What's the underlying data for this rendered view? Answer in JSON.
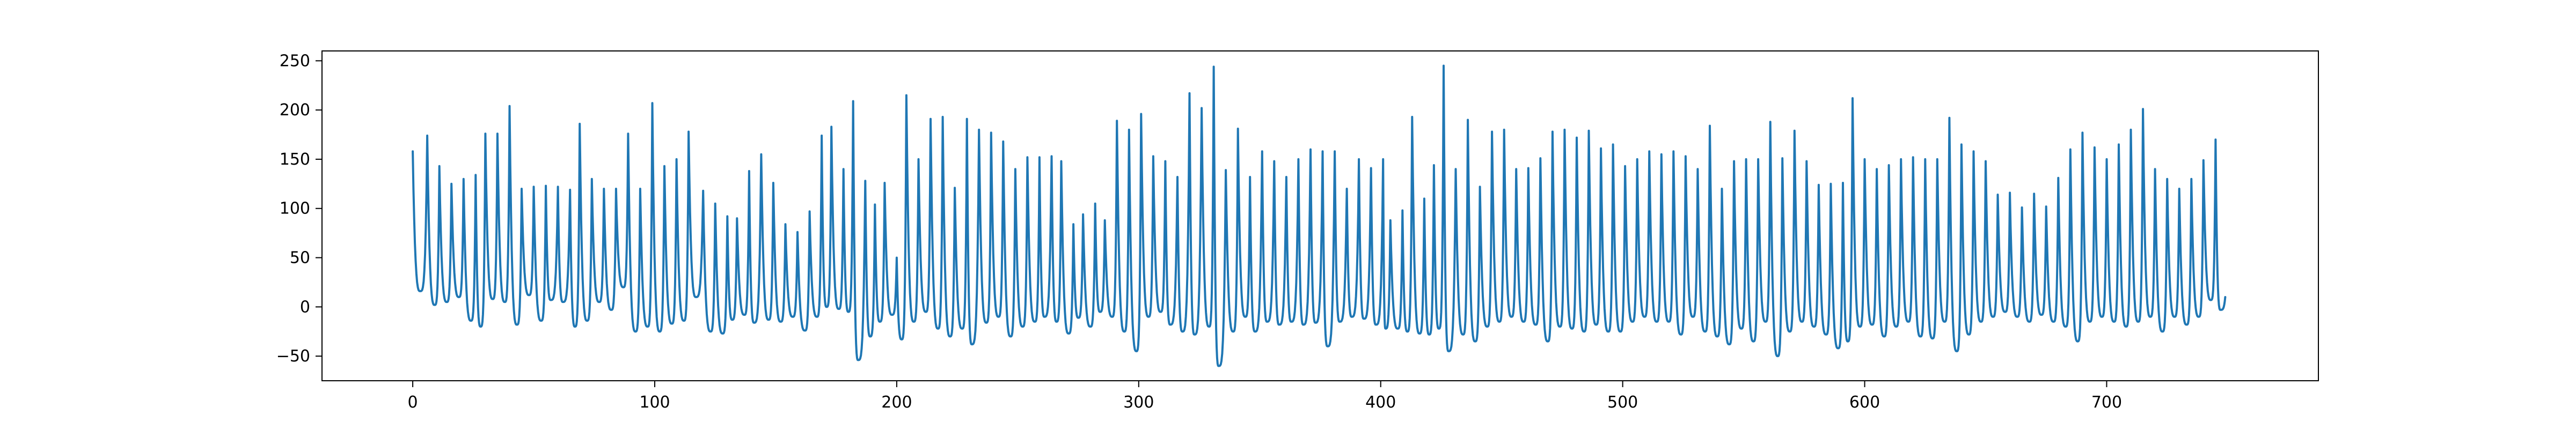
{
  "chart_data": {
    "type": "line",
    "title": "",
    "xlabel": "",
    "ylabel": "",
    "xlim": [
      -37.5,
      787.5
    ],
    "ylim": [
      -75,
      260
    ],
    "x_ticks": [
      0,
      100,
      200,
      300,
      400,
      500,
      600,
      700
    ],
    "y_ticks": [
      -50,
      0,
      50,
      100,
      150,
      200,
      250
    ],
    "grid": false,
    "legend": "none",
    "series": [
      {
        "color": "#1f77b4",
        "x_start": 0,
        "x_step": 1,
        "peaks": [
          [
            0,
            158
          ],
          [
            6,
            174
          ],
          [
            11,
            143
          ],
          [
            16,
            125
          ],
          [
            21,
            130
          ],
          [
            26,
            134
          ],
          [
            30,
            176
          ],
          [
            35,
            176
          ],
          [
            40,
            204
          ],
          [
            45,
            120
          ],
          [
            50,
            122
          ],
          [
            55,
            123
          ],
          [
            60,
            122
          ],
          [
            65,
            119
          ],
          [
            69,
            186
          ],
          [
            74,
            130
          ],
          [
            79,
            120
          ],
          [
            84,
            120
          ],
          [
            89,
            176
          ],
          [
            94,
            120
          ],
          [
            99,
            207
          ],
          [
            104,
            143
          ],
          [
            109,
            150
          ],
          [
            114,
            178
          ],
          [
            120,
            118
          ],
          [
            125,
            105
          ],
          [
            130,
            92
          ],
          [
            134,
            90
          ],
          [
            139,
            138
          ],
          [
            144,
            155
          ],
          [
            149,
            126
          ],
          [
            154,
            84
          ],
          [
            159,
            76
          ],
          [
            164,
            97
          ],
          [
            169,
            174
          ],
          [
            173,
            183
          ],
          [
            178,
            140
          ],
          [
            182,
            209
          ],
          [
            187,
            128
          ],
          [
            191,
            104
          ],
          [
            195,
            126
          ],
          [
            200,
            50
          ],
          [
            204,
            215
          ],
          [
            209,
            150
          ],
          [
            214,
            191
          ],
          [
            219,
            193
          ],
          [
            224,
            121
          ],
          [
            229,
            191
          ],
          [
            234,
            180
          ],
          [
            239,
            177
          ],
          [
            244,
            168
          ],
          [
            249,
            140
          ],
          [
            254,
            152
          ],
          [
            259,
            152
          ],
          [
            264,
            153
          ],
          [
            268,
            148
          ],
          [
            273,
            84
          ],
          [
            277,
            94
          ],
          [
            282,
            105
          ],
          [
            286,
            88
          ],
          [
            291,
            189
          ],
          [
            296,
            180
          ],
          [
            301,
            196
          ],
          [
            306,
            153
          ],
          [
            311,
            148
          ],
          [
            316,
            132
          ],
          [
            321,
            217
          ],
          [
            326,
            202
          ],
          [
            331,
            244
          ],
          [
            336,
            139
          ],
          [
            341,
            181
          ],
          [
            346,
            132
          ],
          [
            351,
            158
          ],
          [
            356,
            148
          ],
          [
            361,
            132
          ],
          [
            366,
            150
          ],
          [
            371,
            160
          ],
          [
            376,
            158
          ],
          [
            381,
            158
          ],
          [
            386,
            120
          ],
          [
            391,
            150
          ],
          [
            396,
            141
          ],
          [
            401,
            150
          ],
          [
            404,
            88
          ],
          [
            409,
            98
          ],
          [
            413,
            193
          ],
          [
            418,
            110
          ],
          [
            422,
            144
          ],
          [
            426,
            245
          ],
          [
            431,
            140
          ],
          [
            436,
            190
          ],
          [
            441,
            122
          ],
          [
            446,
            178
          ],
          [
            451,
            180
          ],
          [
            456,
            140
          ],
          [
            461,
            141
          ],
          [
            466,
            151
          ],
          [
            471,
            178
          ],
          [
            476,
            180
          ],
          [
            481,
            172
          ],
          [
            486,
            179
          ],
          [
            491,
            161
          ],
          [
            496,
            165
          ],
          [
            501,
            143
          ],
          [
            506,
            150
          ],
          [
            511,
            158
          ],
          [
            516,
            155
          ],
          [
            521,
            158
          ],
          [
            526,
            153
          ],
          [
            531,
            140
          ],
          [
            536,
            184
          ],
          [
            541,
            120
          ],
          [
            546,
            148
          ],
          [
            551,
            150
          ],
          [
            556,
            150
          ],
          [
            561,
            188
          ],
          [
            566,
            151
          ],
          [
            571,
            179
          ],
          [
            576,
            148
          ],
          [
            581,
            124
          ],
          [
            586,
            125
          ],
          [
            591,
            126
          ],
          [
            595,
            212
          ],
          [
            600,
            150
          ],
          [
            605,
            140
          ],
          [
            610,
            144
          ],
          [
            615,
            150
          ],
          [
            620,
            152
          ],
          [
            625,
            150
          ],
          [
            630,
            150
          ],
          [
            635,
            192
          ],
          [
            640,
            165
          ],
          [
            645,
            158
          ],
          [
            650,
            148
          ],
          [
            655,
            114
          ],
          [
            660,
            116
          ],
          [
            665,
            101
          ],
          [
            670,
            115
          ],
          [
            675,
            102
          ],
          [
            680,
            131
          ],
          [
            685,
            160
          ],
          [
            690,
            177
          ],
          [
            695,
            162
          ],
          [
            700,
            150
          ],
          [
            705,
            165
          ],
          [
            710,
            180
          ],
          [
            715,
            201
          ],
          [
            720,
            140
          ],
          [
            725,
            130
          ],
          [
            730,
            120
          ],
          [
            735,
            130
          ],
          [
            740,
            149
          ],
          [
            745,
            170
          ]
        ],
        "troughs": [
          [
            3,
            16
          ],
          [
            9,
            2
          ],
          [
            14,
            5
          ],
          [
            19,
            10
          ],
          [
            24,
            -14
          ],
          [
            28,
            -20
          ],
          [
            33,
            8
          ],
          [
            38,
            5
          ],
          [
            43,
            -18
          ],
          [
            48,
            12
          ],
          [
            53,
            -14
          ],
          [
            57,
            7
          ],
          [
            62,
            5
          ],
          [
            67,
            -20
          ],
          [
            72,
            -14
          ],
          [
            77,
            5
          ],
          [
            82,
            -3
          ],
          [
            87,
            20
          ],
          [
            92,
            -25
          ],
          [
            97,
            -20
          ],
          [
            102,
            -25
          ],
          [
            107,
            -17
          ],
          [
            112,
            -14
          ],
          [
            117,
            10
          ],
          [
            123,
            -25
          ],
          [
            128,
            -27
          ],
          [
            132,
            -13
          ],
          [
            137,
            -8
          ],
          [
            141,
            -16
          ],
          [
            147,
            -13
          ],
          [
            152,
            -15
          ],
          [
            157,
            -10
          ],
          [
            162,
            -24
          ],
          [
            167,
            -10
          ],
          [
            171,
            0
          ],
          [
            176,
            -2
          ],
          [
            180,
            -5
          ],
          [
            184,
            -54
          ],
          [
            189,
            -30
          ],
          [
            193,
            -15
          ],
          [
            198,
            -8
          ],
          [
            202,
            -33
          ],
          [
            207,
            -15
          ],
          [
            212,
            -5
          ],
          [
            217,
            -22
          ],
          [
            222,
            -30
          ],
          [
            227,
            -22
          ],
          [
            231,
            -38
          ],
          [
            237,
            -16
          ],
          [
            242,
            -10
          ],
          [
            247,
            -30
          ],
          [
            252,
            -20
          ],
          [
            257,
            -15
          ],
          [
            261,
            -10
          ],
          [
            266,
            -15
          ],
          [
            271,
            -27
          ],
          [
            275,
            -11
          ],
          [
            280,
            -20
          ],
          [
            284,
            -5
          ],
          [
            289,
            -10
          ],
          [
            294,
            -25
          ],
          [
            299,
            -45
          ],
          [
            304,
            -10
          ],
          [
            309,
            -5
          ],
          [
            313,
            -18
          ],
          [
            318,
            -25
          ],
          [
            323,
            -28
          ],
          [
            329,
            -20
          ],
          [
            333,
            -60
          ],
          [
            339,
            -25
          ],
          [
            344,
            -10
          ],
          [
            348,
            -25
          ],
          [
            353,
            -15
          ],
          [
            358,
            -18
          ],
          [
            363,
            -15
          ],
          [
            368,
            -18
          ],
          [
            373,
            -16
          ],
          [
            378,
            -40
          ],
          [
            383,
            -15
          ],
          [
            388,
            -10
          ],
          [
            393,
            -12
          ],
          [
            398,
            -18
          ],
          [
            402,
            -22
          ],
          [
            407,
            -22
          ],
          [
            411,
            -25
          ],
          [
            416,
            -27
          ],
          [
            420,
            -28
          ],
          [
            424,
            -22
          ],
          [
            428,
            -45
          ],
          [
            434,
            -28
          ],
          [
            439,
            -35
          ],
          [
            444,
            -20
          ],
          [
            449,
            -15
          ],
          [
            454,
            -10
          ],
          [
            459,
            -15
          ],
          [
            464,
            -18
          ],
          [
            469,
            -35
          ],
          [
            474,
            -20
          ],
          [
            479,
            -22
          ],
          [
            484,
            -25
          ],
          [
            489,
            -18
          ],
          [
            494,
            -25
          ],
          [
            499,
            -25
          ],
          [
            504,
            -15
          ],
          [
            509,
            -10
          ],
          [
            514,
            -15
          ],
          [
            519,
            -15
          ],
          [
            524,
            -28
          ],
          [
            529,
            -10
          ],
          [
            534,
            -25
          ],
          [
            539,
            -30
          ],
          [
            544,
            -38
          ],
          [
            549,
            -22
          ],
          [
            554,
            -35
          ],
          [
            559,
            -15
          ],
          [
            564,
            -50
          ],
          [
            569,
            -25
          ],
          [
            574,
            -15
          ],
          [
            579,
            -20
          ],
          [
            584,
            -28
          ],
          [
            589,
            -42
          ],
          [
            593,
            -35
          ],
          [
            598,
            -20
          ],
          [
            603,
            -18
          ],
          [
            608,
            -30
          ],
          [
            613,
            -20
          ],
          [
            618,
            -15
          ],
          [
            623,
            -30
          ],
          [
            628,
            -32
          ],
          [
            633,
            -15
          ],
          [
            638,
            -45
          ],
          [
            643,
            -28
          ],
          [
            648,
            -15
          ],
          [
            653,
            -10
          ],
          [
            658,
            -5
          ],
          [
            663,
            -10
          ],
          [
            668,
            -15
          ],
          [
            673,
            -8
          ],
          [
            678,
            -15
          ],
          [
            683,
            -20
          ],
          [
            688,
            -35
          ],
          [
            693,
            -15
          ],
          [
            698,
            -10
          ],
          [
            703,
            -15
          ],
          [
            708,
            -20
          ],
          [
            713,
            -15
          ],
          [
            718,
            -10
          ],
          [
            723,
            -25
          ],
          [
            728,
            -10
          ],
          [
            733,
            -18
          ],
          [
            738,
            -10
          ],
          [
            743,
            7
          ],
          [
            747,
            -3
          ]
        ],
        "x_end": 749,
        "y_end": 10
      }
    ]
  }
}
